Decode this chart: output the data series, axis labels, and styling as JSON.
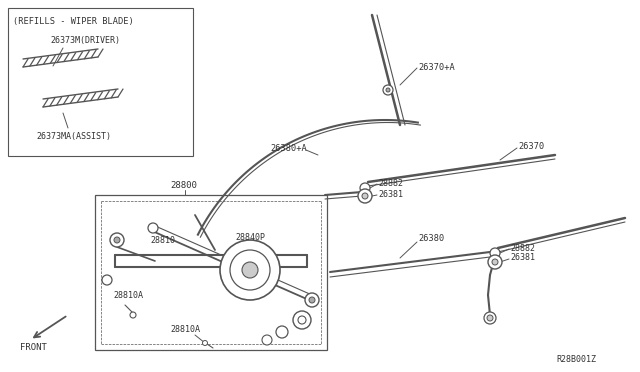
{
  "bg_color": "#ffffff",
  "line_color": "#555555",
  "text_color": "#333333",
  "fig_width": 6.4,
  "fig_height": 3.72,
  "dpi": 100,
  "diagram_id": "R28B001Z",
  "labels": {
    "refills_box_title": "(REFILLS - WIPER BLADE)",
    "driver": "26373M(DRIVER)",
    "assist": "26373MA(ASSIST)",
    "p28800": "28800",
    "p26370A": "26370+A",
    "p26380A": "26380+A",
    "p26370": "26370",
    "p26380": "26380",
    "p28882a": "28882",
    "p26381a": "26381",
    "p28882b": "28882",
    "p26381b": "26381",
    "p28810": "28810",
    "p28840p": "28840P",
    "p28810a": "28810A",
    "p28810a2": "28810A",
    "front": "FRONT"
  }
}
